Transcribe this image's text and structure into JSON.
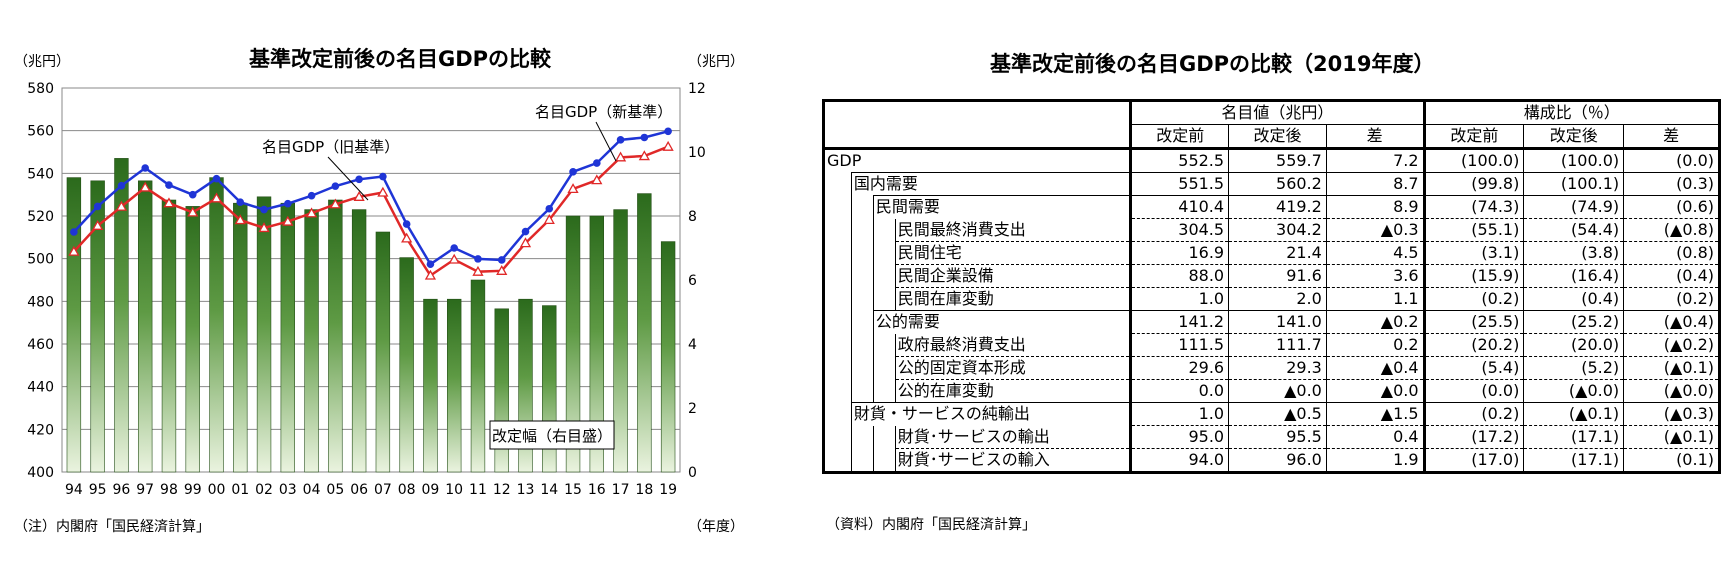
{
  "chart_data": [
    {
      "type": "bar+line",
      "title": "基準改定前後の名目GDPの比較",
      "left_unit": "（兆円）",
      "right_unit": "（兆円）",
      "xlabel": "（年度）",
      "note": "（注）内閣府「国民経済計算」",
      "ylim_left": [
        400,
        580
      ],
      "ylim_right": [
        0,
        12
      ],
      "yticks_left": [
        400,
        420,
        440,
        460,
        480,
        500,
        520,
        540,
        560,
        580
      ],
      "yticks_right": [
        0,
        2,
        4,
        6,
        8,
        10,
        12
      ],
      "grid": true,
      "categories": [
        "94",
        "95",
        "96",
        "97",
        "98",
        "99",
        "00",
        "01",
        "02",
        "03",
        "04",
        "05",
        "06",
        "07",
        "08",
        "09",
        "10",
        "11",
        "12",
        "13",
        "14",
        "15",
        "16",
        "17",
        "18",
        "19"
      ],
      "series": [
        {
          "name": "改定幅（右目盛）",
          "kind": "bar",
          "axis": "right",
          "values": [
            9.2,
            9.1,
            9.8,
            9.1,
            8.5,
            8.3,
            9.2,
            8.4,
            8.6,
            8.4,
            8.2,
            8.5,
            8.2,
            7.5,
            6.7,
            5.4,
            5.4,
            6.0,
            5.1,
            5.4,
            5.2,
            8.0,
            8.0,
            8.2,
            8.7,
            7.2
          ]
        },
        {
          "name": "名目GDP（新基準）",
          "kind": "line",
          "axis": "left",
          "color": "#1f35d6",
          "values": [
            512.5,
            524.5,
            534.2,
            542.5,
            534.5,
            530.0,
            537.5,
            526.5,
            523.0,
            525.8,
            529.5,
            534.0,
            537.2,
            538.5,
            516.2,
            497.4,
            505.0,
            499.9,
            499.4,
            512.7,
            523.4,
            540.7,
            544.8,
            555.7,
            556.8,
            559.7
          ]
        },
        {
          "name": "名目GDP（旧基準）",
          "kind": "line",
          "axis": "left",
          "color": "#e02828",
          "values": [
            503.3,
            515.4,
            524.4,
            533.4,
            526.0,
            521.7,
            528.3,
            518.1,
            514.4,
            517.4,
            521.3,
            525.5,
            529.0,
            531.0,
            509.5,
            492.1,
            499.6,
            493.9,
            494.3,
            507.3,
            518.2,
            532.7,
            536.8,
            547.5,
            548.1,
            552.5
          ]
        }
      ],
      "annotations": [
        "名目GDP（新基準）",
        "名目GDP（旧基準）",
        "改定幅（右目盛）"
      ]
    },
    {
      "type": "table",
      "title": "基準改定前後の名目GDPの比較（2019年度）",
      "header_groups": [
        "名目値（兆円）",
        "構成比（％）"
      ],
      "columns": [
        "改定前",
        "改定後",
        "差",
        "改定前",
        "改定後",
        "差"
      ],
      "rows": [
        {
          "label": "GDP",
          "level": 0,
          "values": [
            "552.5",
            "559.7",
            "7.2",
            "(100.0)",
            "(100.0)",
            "(0.0)"
          ]
        },
        {
          "label": "国内需要",
          "level": 1,
          "values": [
            "551.5",
            "560.2",
            "8.7",
            "(99.8)",
            "(100.1)",
            "(0.3)"
          ]
        },
        {
          "label": "民間需要",
          "level": 2,
          "values": [
            "410.4",
            "419.2",
            "8.9",
            "(74.3)",
            "(74.9)",
            "(0.6)"
          ]
        },
        {
          "label": "民間最終消費支出",
          "level": 3,
          "values": [
            "304.5",
            "304.2",
            "▲0.3",
            "(55.1)",
            "(54.4)",
            "(▲0.8)"
          ]
        },
        {
          "label": "民間住宅",
          "level": 3,
          "values": [
            "16.9",
            "21.4",
            "4.5",
            "(3.1)",
            "(3.8)",
            "(0.8)"
          ]
        },
        {
          "label": "民間企業設備",
          "level": 3,
          "values": [
            "88.0",
            "91.6",
            "3.6",
            "(15.9)",
            "(16.4)",
            "(0.4)"
          ]
        },
        {
          "label": "民間在庫変動",
          "level": 3,
          "values": [
            "1.0",
            "2.0",
            "1.1",
            "(0.2)",
            "(0.4)",
            "(0.2)"
          ]
        },
        {
          "label": "公的需要",
          "level": 2,
          "values": [
            "141.2",
            "141.0",
            "▲0.2",
            "(25.5)",
            "(25.2)",
            "(▲0.4)"
          ]
        },
        {
          "label": "政府最終消費支出",
          "level": 3,
          "values": [
            "111.5",
            "111.7",
            "0.2",
            "(20.2)",
            "(20.0)",
            "(▲0.2)"
          ]
        },
        {
          "label": "公的固定資本形成",
          "level": 3,
          "values": [
            "29.6",
            "29.3",
            "▲0.4",
            "(5.4)",
            "(5.2)",
            "(▲0.1)"
          ]
        },
        {
          "label": "公的在庫変動",
          "level": 3,
          "values": [
            "0.0",
            "▲0.0",
            "▲0.0",
            "(0.0)",
            "(▲0.0)",
            "(▲0.0)"
          ]
        },
        {
          "label": "財貨・サービスの純輸出",
          "level": 1,
          "values": [
            "1.0",
            "▲0.5",
            "▲1.5",
            "(0.2)",
            "(▲0.1)",
            "(▲0.3)"
          ]
        },
        {
          "label": "財貨･サービスの輸出",
          "level": 3,
          "values": [
            "95.0",
            "95.5",
            "0.4",
            "(17.2)",
            "(17.1)",
            "(▲0.1)"
          ]
        },
        {
          "label": "財貨･サービスの輸入",
          "level": 3,
          "values": [
            "94.0",
            "96.0",
            "1.9",
            "(17.0)",
            "(17.1)",
            "(0.1)"
          ]
        }
      ],
      "note": "（資料）内閣府「国民経済計算」"
    }
  ]
}
